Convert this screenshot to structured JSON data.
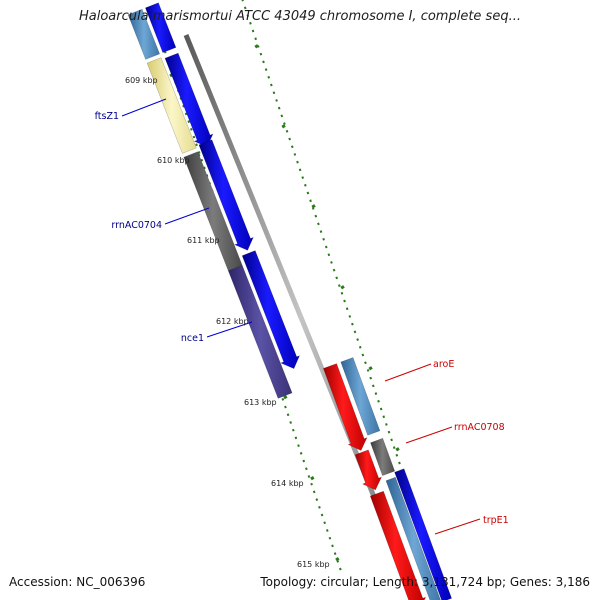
{
  "title": "Haloarcula marismortui ATCC 43049 chromosome I, complete seq...",
  "ruler_labels": [
    "609 kbp",
    "610 kbp",
    "611 kbp",
    "612 kbp",
    "613 kbp",
    "614 kbp",
    "615 kbp"
  ],
  "gene_labels": {
    "left": [
      "ftsZ1",
      "rrnAC0704",
      "nce1"
    ],
    "right": [
      "aroE",
      "rrnAC0708",
      "trpE1"
    ]
  },
  "footer": {
    "accession": "Accession: NC_006396",
    "stats": "Topology: circular; Length: 3,131,724 bp; Genes: 3,186"
  },
  "colors": {
    "left_label": "#00008b",
    "right_label": "#cc0000",
    "ruler": "#2a7a1a",
    "backbone": "#808080",
    "forward_gene": "#0000ee",
    "reverse_gene": "#ee0000",
    "feature_yellow": "#f0e8a0",
    "feature_gray": "#606060",
    "feature_purple": "#4a4090",
    "feature_steelblue": "#4a7fb0"
  }
}
